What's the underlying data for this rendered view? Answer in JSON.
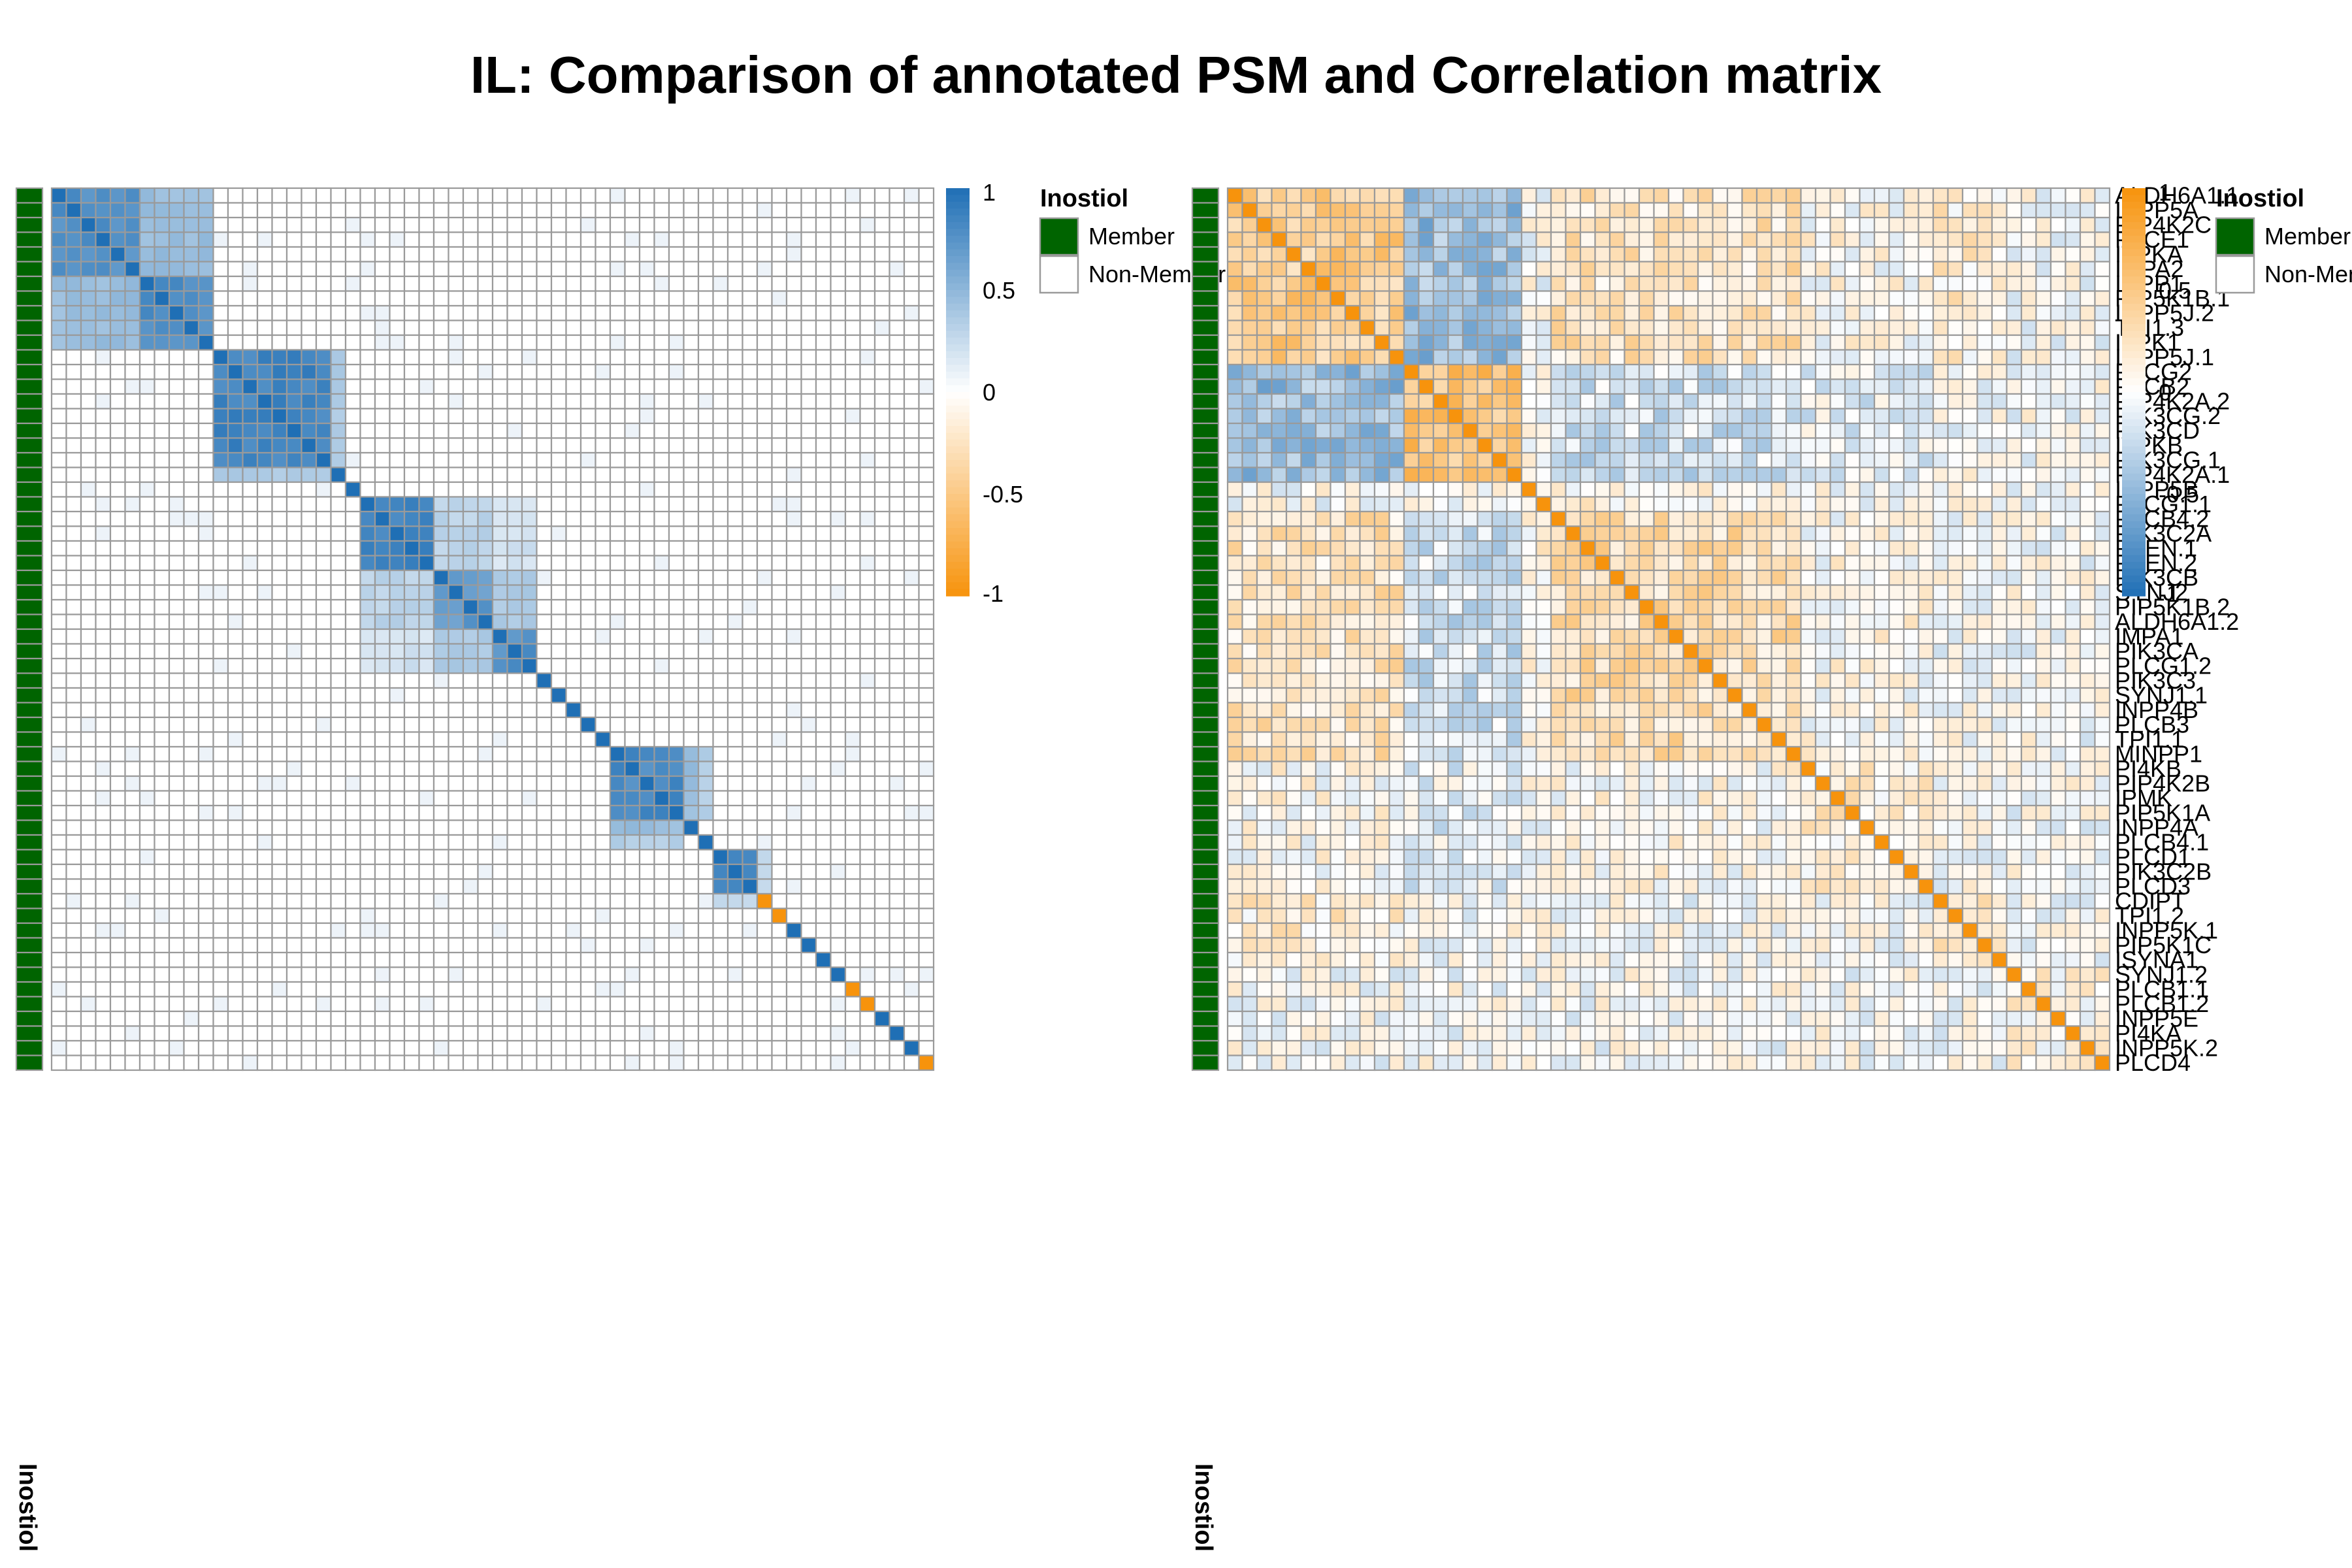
{
  "title": "IL: Comparison of annotated PSM and Correlation matrix",
  "colors": {
    "psm_high": "#1f6fb5",
    "psm_zero": "#ffffff",
    "psm_low": "#f7930c",
    "cor_high": "#f7930c",
    "cor_zero": "#ffffff",
    "cor_low": "#1f6fb5",
    "member": "#006400",
    "non_member": "#ffffff",
    "cell_border": "#9a9a9a"
  },
  "annotation": {
    "name": "Inostiol",
    "legend_title": "Inostiol",
    "levels": [
      "Member",
      "Non-Member"
    ]
  },
  "chart_data": [
    {
      "type": "heatmap",
      "name": "PSM",
      "legend_ticks": [
        "1",
        "0.5",
        "0",
        "-0.5",
        "-1"
      ],
      "zlim": [
        -1,
        1
      ],
      "block_sizes": [
        6,
        5,
        8,
        1,
        1,
        5,
        4,
        3,
        1,
        1,
        1,
        1,
        1,
        5,
        1,
        1,
        3,
        1,
        1,
        1,
        1,
        1,
        1,
        1,
        1,
        1,
        1,
        1,
        1
      ],
      "block_within": [
        0.78,
        0.8,
        0.85,
        0.85,
        1,
        0.82,
        0.7,
        0.75,
        0.7,
        0.75,
        0.85,
        0.7,
        0.85,
        0.8,
        0.9,
        0.75,
        0.85,
        -1,
        -1,
        0.4,
        0.5,
        1,
        1,
        -1,
        -1,
        0.3,
        0.2,
        0.3,
        -1
      ],
      "block_links": [
        [
          0,
          1,
          0.45
        ],
        [
          2,
          3,
          0.35
        ],
        [
          5,
          6,
          0.3
        ],
        [
          5,
          7,
          0.2
        ],
        [
          6,
          7,
          0.35
        ],
        [
          13,
          14,
          0.45
        ],
        [
          13,
          15,
          0.35
        ],
        [
          16,
          17,
          0.3
        ]
      ],
      "members": 60
    },
    {
      "type": "heatmap",
      "name": "Correlation",
      "legend_ticks": [
        "1",
        "0.5",
        "0",
        "-0.5",
        "-1"
      ],
      "zlim": [
        -1,
        1
      ],
      "row_labels": [
        "ALDH6A1.1",
        "INPP5A",
        "PIP4K2C",
        "PLCE1",
        "ITPKA",
        "IMPA2",
        "INPP1",
        "PIP5K1B.1",
        "INPP5J.2",
        "TPI1.3",
        "ITPK1",
        "INPP5J.1",
        "PLCG2",
        "PLCB2",
        "PIP4K2A.2",
        "PIK3CG.2",
        "PIK3CD",
        "ITPKB",
        "PIK3CG.1",
        "PIP4K2A.1",
        "INPP5B",
        "PLCG1.1",
        "PLCB4.2",
        "PIK3C2A",
        "PTEN.1",
        "PTEN.2",
        "PIK3CB",
        "SYNJ2",
        "PIP5K1B.2",
        "ALDH6A1.2",
        "IMPA1",
        "PIK3CA",
        "PLCG1.2",
        "PIK3C3",
        "SYNJ1.1",
        "INPP4B",
        "PLCB3",
        "TPI1.1",
        "MINPP1",
        "PI4KB",
        "PIP4K2B",
        "IPMK",
        "PIP5K1A",
        "INPP4A",
        "PLCB4.1",
        "PLCD1",
        "PIK3C2B",
        "PLCD3",
        "CDIPT",
        "TPI1.2",
        "INPP5K.1",
        "PIP5K1C",
        "ISYNA1",
        "SYNJ1.2",
        "PLCB1.1",
        "PLCB1.2",
        "INPP5E",
        "PI4KA",
        "INPP5K.2",
        "PLCD4"
      ],
      "groups": [
        0,
        0,
        0,
        0,
        0,
        0,
        0,
        0,
        0,
        0,
        0,
        0,
        1,
        1,
        1,
        1,
        1,
        1,
        1,
        1,
        2,
        2,
        3,
        3,
        3,
        3,
        3,
        3,
        3,
        3,
        3,
        3,
        3,
        3,
        3,
        3,
        3,
        3,
        3,
        4,
        4,
        4,
        4,
        4,
        4,
        4,
        4,
        4,
        5,
        5,
        5,
        5,
        5,
        6,
        6,
        6,
        6,
        6,
        6,
        6
      ],
      "group_within": [
        0.45,
        0.55,
        0.1,
        0.3,
        0.15,
        0.25,
        0.08
      ],
      "group_between": [
        [
          0,
          1,
          -0.45
        ],
        [
          0,
          3,
          0.25
        ],
        [
          1,
          3,
          -0.2
        ],
        [
          0,
          5,
          0.15
        ],
        [
          0,
          4,
          0.05
        ],
        [
          1,
          4,
          -0.1
        ],
        [
          3,
          4,
          0.05
        ],
        [
          2,
          3,
          0.1
        ]
      ]
    }
  ]
}
